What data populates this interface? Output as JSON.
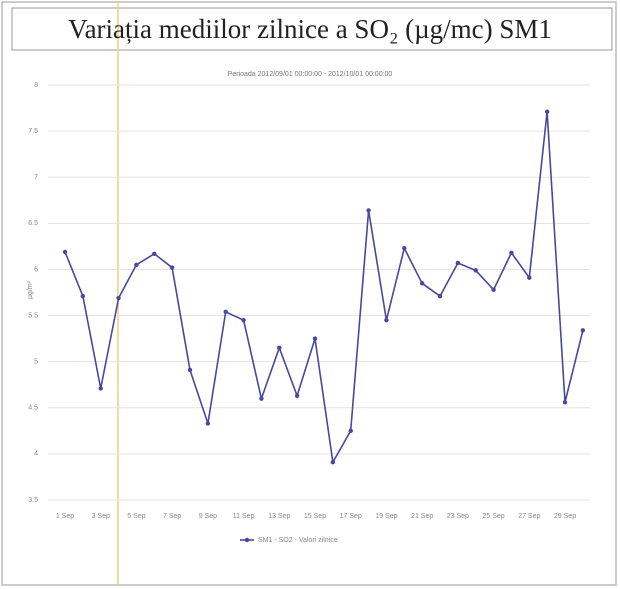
{
  "chart_data": {
    "type": "line",
    "title": "Variația mediilor zilnice a SO₂ (µg/mc) SM1",
    "subtitle": "Perioada 2012/09/01 00:00:00 - 2012/10/01 00:00:00",
    "y_label": "µg/m³",
    "categories": [
      "1 Sep",
      null,
      "3 Sep",
      null,
      "5 Sep",
      null,
      "7 Sep",
      null,
      "9 Sep",
      null,
      "11 Sep",
      null,
      "13 Sep",
      null,
      "15 Sep",
      null,
      "17 Sep",
      null,
      "19 Sep",
      null,
      "21 Sep",
      null,
      "23 Sep",
      null,
      "25 Sep",
      null,
      "27 Sep",
      null,
      "29 Sep",
      null
    ],
    "series": [
      {
        "name": "SM1 - SO2 - Valori zilnice",
        "color": "#4848a0",
        "values": [
          6.19,
          5.71,
          4.71,
          5.69,
          6.05,
          6.17,
          6.02,
          4.91,
          4.33,
          5.54,
          5.45,
          4.6,
          5.15,
          4.63,
          5.25,
          3.91,
          4.25,
          6.64,
          5.45,
          6.23,
          5.85,
          5.71,
          6.07,
          5.99,
          5.78,
          6.18,
          5.91,
          7.71,
          4.56,
          5.34
        ]
      }
    ],
    "ylim": [
      3.5,
      8
    ],
    "yticks": [
      3.5,
      4,
      4.5,
      5,
      5.5,
      6,
      6.5,
      7,
      7.5,
      8
    ],
    "grid": true,
    "legend": "bottom"
  }
}
